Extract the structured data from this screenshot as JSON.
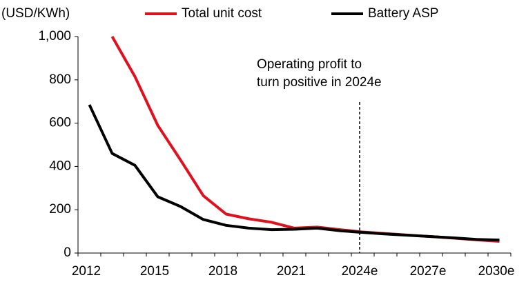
{
  "chart_data": {
    "type": "line",
    "unit_label": "(USD/KWh)",
    "categories": [
      "2012",
      null,
      null,
      "2015",
      null,
      null,
      "2018",
      null,
      null,
      "2021",
      null,
      null,
      "2024e",
      null,
      null,
      "2027e",
      null,
      null,
      "2030e"
    ],
    "series": [
      {
        "name": "Total unit cost",
        "color": "#e0101e",
        "values": [
          null,
          1000,
          815,
          590,
          430,
          265,
          180,
          158,
          142,
          115,
          120,
          108,
          97,
          90,
          83,
          76,
          69,
          61,
          54
        ]
      },
      {
        "name": "Battery ASP",
        "color": "#000000",
        "values": [
          685,
          460,
          405,
          260,
          215,
          155,
          128,
          115,
          108,
          110,
          115,
          103,
          95,
          88,
          82,
          76,
          70,
          63,
          60
        ]
      }
    ],
    "ylim": [
      0,
      1000
    ],
    "yticks": [
      0,
      200,
      400,
      600,
      {
        "value": 1000,
        "label": "1,000"
      },
      800
    ],
    "annotation": {
      "lines": [
        "Operating profit to",
        "turn positive in 2024e"
      ],
      "at": "2024e"
    },
    "grid": false
  }
}
